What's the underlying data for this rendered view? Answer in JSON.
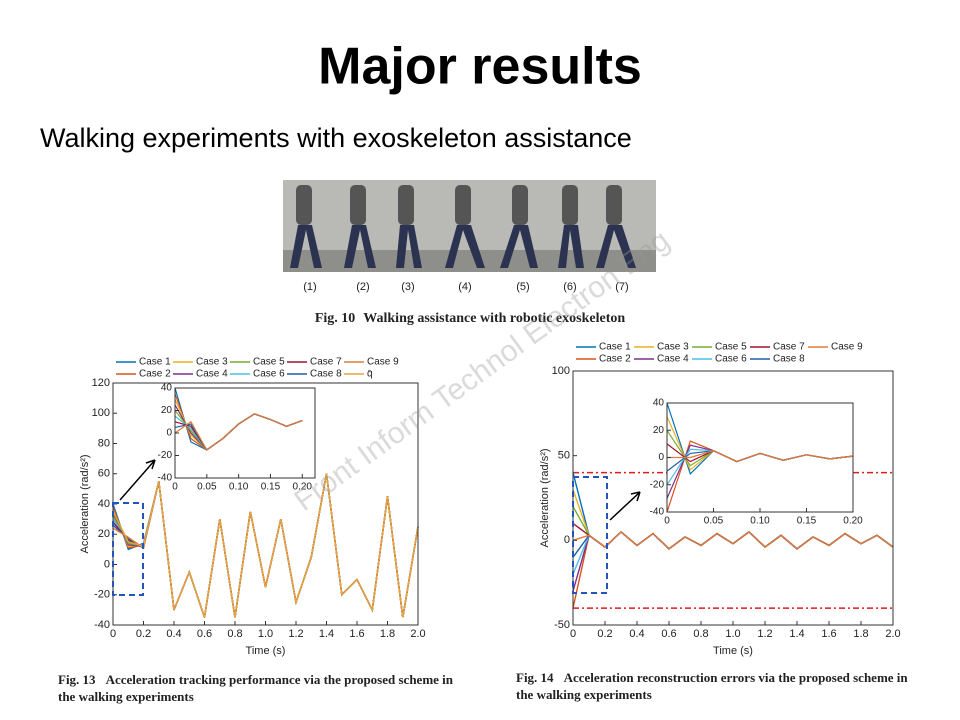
{
  "slide": {
    "title": "Major results",
    "subtitle": "Walking experiments with exoskeleton assistance"
  },
  "photo": {
    "labels": [
      "(1)",
      "(2)",
      "(3)",
      "(4)",
      "(5)",
      "(6)",
      "(7)"
    ],
    "caption_label": "Fig. 10",
    "caption": "Walking assistance with robotic exoskeleton"
  },
  "watermark": "Front Inform Technol Electron Eng",
  "figures": [
    {
      "caption_label": "Fig. 13",
      "caption": "Acceleration tracking performance via the proposed scheme in the walking experiments"
    },
    {
      "caption_label": "Fig. 14",
      "caption": "Acceleration reconstruction errors via the proposed scheme in the walking experiments"
    }
  ],
  "chart_data": [
    {
      "type": "line",
      "xlabel": "Time (s)",
      "ylabel": "Acceleration (rad/s²)",
      "xlim": [
        0,
        2
      ],
      "ylim": [
        -40,
        120
      ],
      "xticks": [
        0,
        0.2,
        0.4,
        0.6,
        0.8,
        {
          "value": 1,
          "label": "1.0"
        },
        1.2,
        1.4,
        1.6,
        1.8,
        {
          "value": 2,
          "label": "2.0"
        }
      ],
      "yticks": [
        -40,
        -20,
        0,
        20,
        40,
        60,
        80,
        100,
        120
      ],
      "x": [
        0,
        0.1,
        0.2,
        0.3,
        0.4,
        0.5,
        0.6,
        0.7,
        0.8,
        0.9,
        1,
        1.1,
        1.2,
        1.3,
        1.4,
        1.5,
        1.6,
        1.7,
        1.8,
        1.9,
        2
      ],
      "series": [
        {
          "name": "Case 1",
          "color": "#0072bd",
          "values": [
            40,
            10,
            14,
            55,
            -30,
            -5,
            -35,
            30,
            -35,
            35,
            -15,
            30,
            -25,
            5,
            60,
            -20,
            -10,
            -30,
            45,
            -35,
            25
          ]
        },
        {
          "name": "Case 2",
          "color": "#d95319",
          "values": [
            38,
            11,
            13,
            55,
            -30,
            -5,
            -35,
            30,
            -35,
            35,
            -15,
            30,
            -25,
            5,
            60,
            -20,
            -10,
            -30,
            45,
            -35,
            25
          ]
        },
        {
          "name": "Case 3",
          "color": "#edb120",
          "values": [
            36,
            12,
            13,
            55,
            -30,
            -5,
            -35,
            30,
            -35,
            35,
            -15,
            30,
            -25,
            5,
            60,
            -20,
            -10,
            -30,
            45,
            -35,
            25
          ]
        },
        {
          "name": "Case 4",
          "color": "#7e2f8e",
          "values": [
            34,
            13,
            12,
            55,
            -30,
            -5,
            -35,
            30,
            -35,
            35,
            -15,
            30,
            -25,
            5,
            60,
            -20,
            -10,
            -30,
            45,
            -35,
            25
          ]
        },
        {
          "name": "Case 5",
          "color": "#77ac30",
          "values": [
            32,
            14,
            12,
            55,
            -30,
            -5,
            -35,
            30,
            -35,
            35,
            -15,
            30,
            -25,
            5,
            60,
            -20,
            -10,
            -30,
            45,
            -35,
            25
          ]
        },
        {
          "name": "Case 6",
          "color": "#4dbeee",
          "values": [
            30,
            15,
            12,
            55,
            -30,
            -5,
            -35,
            30,
            -35,
            35,
            -15,
            30,
            -25,
            5,
            60,
            -20,
            -10,
            -30,
            45,
            -35,
            25
          ]
        },
        {
          "name": "Case 7",
          "color": "#a2142f",
          "values": [
            28,
            16,
            11,
            55,
            -30,
            -5,
            -35,
            30,
            -35,
            35,
            -15,
            30,
            -25,
            5,
            60,
            -20,
            -10,
            -30,
            45,
            -35,
            25
          ]
        },
        {
          "name": "Case 8",
          "color": "#1f5fa8",
          "values": [
            26,
            17,
            11,
            55,
            -30,
            -5,
            -35,
            30,
            -35,
            35,
            -15,
            30,
            -25,
            5,
            60,
            -20,
            -10,
            -30,
            45,
            -35,
            25
          ]
        },
        {
          "name": "Case 9",
          "color": "#e07b39",
          "values": [
            24,
            18,
            11,
            55,
            -30,
            -5,
            -35,
            30,
            -35,
            35,
            -15,
            30,
            -25,
            5,
            60,
            -20,
            -10,
            -30,
            45,
            -35,
            25
          ]
        },
        {
          "name": "q̄",
          "color": "#e8a33a",
          "values": [
            35,
            15,
            12,
            55,
            -30,
            -5,
            -35,
            30,
            -35,
            35,
            -15,
            30,
            -25,
            5,
            60,
            -20,
            -10,
            -30,
            45,
            -35,
            25
          ]
        }
      ]
    },
    {
      "type": "line",
      "xlim": [
        0,
        0.22
      ],
      "ylim": [
        -40,
        40
      ],
      "xticks": [
        0,
        0.05,
        {
          "value": 0.1,
          "label": "0.10"
        },
        0.15,
        {
          "value": 0.2,
          "label": "0.20"
        }
      ],
      "yticks": [
        -40,
        -20,
        0,
        20,
        40
      ],
      "x": [
        0,
        0.025,
        0.05,
        0.075,
        0.1,
        0.125,
        0.15,
        0.175,
        0.2
      ],
      "series": [
        {
          "color": "#0072bd",
          "values": [
            40,
            -8,
            -15,
            -5,
            8,
            17,
            12,
            6,
            11
          ]
        },
        {
          "color": "#d95319",
          "values": [
            35,
            -5,
            -15,
            -5,
            8,
            17,
            12,
            6,
            11
          ]
        },
        {
          "color": "#edb120",
          "values": [
            30,
            -2,
            -15,
            -5,
            8,
            17,
            12,
            6,
            11
          ]
        },
        {
          "color": "#7e2f8e",
          "values": [
            25,
            0,
            -15,
            -5,
            8,
            17,
            12,
            6,
            11
          ]
        },
        {
          "color": "#77ac30",
          "values": [
            20,
            2,
            -15,
            -5,
            8,
            17,
            12,
            6,
            11
          ]
        },
        {
          "color": "#4dbeee",
          "values": [
            15,
            4,
            -15,
            -5,
            8,
            17,
            12,
            6,
            11
          ]
        },
        {
          "color": "#a2142f",
          "values": [
            10,
            6,
            -15,
            -5,
            8,
            17,
            12,
            6,
            11
          ]
        },
        {
          "color": "#1f5fa8",
          "values": [
            5,
            8,
            -15,
            -5,
            8,
            17,
            12,
            6,
            11
          ]
        },
        {
          "color": "#e07b39",
          "values": [
            0,
            10,
            -15,
            -5,
            8,
            17,
            12,
            6,
            11
          ]
        }
      ]
    },
    {
      "type": "line",
      "xlabel": "Time (s)",
      "ylabel": "Acceleration (rad/s²)",
      "xlim": [
        0,
        2
      ],
      "ylim": [
        -50,
        100
      ],
      "xticks": [
        0,
        0.2,
        0.4,
        0.6,
        0.8,
        {
          "value": 1,
          "label": "1.0"
        },
        1.2,
        1.4,
        1.6,
        1.8,
        {
          "value": 2,
          "label": "2.0"
        }
      ],
      "yticks": [
        -50,
        0,
        50,
        100
      ],
      "reference_lines": [
        40,
        -40
      ],
      "reference_color": "#e41a1c",
      "x": [
        0,
        0.1,
        0.2,
        0.3,
        0.4,
        0.5,
        0.6,
        0.7,
        0.8,
        0.9,
        1,
        1.1,
        1.2,
        1.3,
        1.4,
        1.5,
        1.6,
        1.7,
        1.8,
        1.9,
        2
      ],
      "series": [
        {
          "name": "Case 1",
          "color": "#0072bd",
          "values": [
            40,
            3,
            -4,
            5,
            -3,
            4,
            -5,
            2,
            -3,
            4,
            -2,
            5,
            -4,
            3,
            -5,
            2,
            -3,
            4,
            -2,
            3,
            -4
          ]
        },
        {
          "name": "Case 2",
          "color": "#d95319",
          "values": [
            -40,
            3,
            -4,
            5,
            -3,
            4,
            -5,
            2,
            -3,
            4,
            -2,
            5,
            -4,
            3,
            -5,
            2,
            -3,
            4,
            -2,
            3,
            -4
          ]
        },
        {
          "name": "Case 3",
          "color": "#edb120",
          "values": [
            30,
            3,
            -4,
            5,
            -3,
            4,
            -5,
            2,
            -3,
            4,
            -2,
            5,
            -4,
            3,
            -5,
            2,
            -3,
            4,
            -2,
            3,
            -4
          ]
        },
        {
          "name": "Case 4",
          "color": "#7e2f8e",
          "values": [
            -30,
            3,
            -4,
            5,
            -3,
            4,
            -5,
            2,
            -3,
            4,
            -2,
            5,
            -4,
            3,
            -5,
            2,
            -3,
            4,
            -2,
            3,
            -4
          ]
        },
        {
          "name": "Case 5",
          "color": "#77ac30",
          "values": [
            20,
            3,
            -4,
            5,
            -3,
            4,
            -5,
            2,
            -3,
            4,
            -2,
            5,
            -4,
            3,
            -5,
            2,
            -3,
            4,
            -2,
            3,
            -4
          ]
        },
        {
          "name": "Case 6",
          "color": "#4dbeee",
          "values": [
            -20,
            3,
            -4,
            5,
            -3,
            4,
            -5,
            2,
            -3,
            4,
            -2,
            5,
            -4,
            3,
            -5,
            2,
            -3,
            4,
            -2,
            3,
            -4
          ]
        },
        {
          "name": "Case 7",
          "color": "#a2142f",
          "values": [
            10,
            3,
            -4,
            5,
            -3,
            4,
            -5,
            2,
            -3,
            4,
            -2,
            5,
            -4,
            3,
            -5,
            2,
            -3,
            4,
            -2,
            3,
            -4
          ]
        },
        {
          "name": "Case 8",
          "color": "#1f5fa8",
          "values": [
            -10,
            3,
            -4,
            5,
            -3,
            4,
            -5,
            2,
            -3,
            4,
            -2,
            5,
            -4,
            3,
            -5,
            2,
            -3,
            4,
            -2,
            3,
            -4
          ]
        },
        {
          "name": "Case 9",
          "color": "#e07b39",
          "values": [
            0,
            3,
            -4,
            5,
            -3,
            4,
            -5,
            2,
            -3,
            4,
            -2,
            5,
            -4,
            3,
            -5,
            2,
            -3,
            4,
            -2,
            3,
            -4
          ]
        }
      ]
    },
    {
      "type": "line",
      "xlim": [
        0,
        0.2
      ],
      "ylim": [
        -40,
        40
      ],
      "xticks": [
        0,
        0.05,
        {
          "value": 0.1,
          "label": "0.10"
        },
        0.15,
        {
          "value": 0.2,
          "label": "0.20"
        }
      ],
      "yticks": [
        -40,
        -20,
        0,
        20,
        40
      ],
      "x": [
        0,
        0.025,
        0.05,
        0.075,
        0.1,
        0.125,
        0.15,
        0.175,
        0.2
      ],
      "series": [
        {
          "color": "#0072bd",
          "values": [
            40,
            -12,
            5,
            -3,
            3,
            -2,
            2,
            -1,
            1
          ]
        },
        {
          "color": "#d95319",
          "values": [
            -40,
            12,
            5,
            -3,
            3,
            -2,
            2,
            -1,
            1
          ]
        },
        {
          "color": "#edb120",
          "values": [
            30,
            -9,
            5,
            -3,
            3,
            -2,
            2,
            -1,
            1
          ]
        },
        {
          "color": "#7e2f8e",
          "values": [
            -30,
            9,
            5,
            -3,
            3,
            -2,
            2,
            -1,
            1
          ]
        },
        {
          "color": "#77ac30",
          "values": [
            20,
            -6,
            5,
            -3,
            3,
            -2,
            2,
            -1,
            1
          ]
        },
        {
          "color": "#4dbeee",
          "values": [
            -20,
            6,
            5,
            -3,
            3,
            -2,
            2,
            -1,
            1
          ]
        },
        {
          "color": "#a2142f",
          "values": [
            10,
            -3,
            5,
            -3,
            3,
            -2,
            2,
            -1,
            1
          ]
        },
        {
          "color": "#1f5fa8",
          "values": [
            -10,
            3,
            5,
            -3,
            3,
            -2,
            2,
            -1,
            1
          ]
        },
        {
          "color": "#e07b39",
          "values": [
            0,
            0,
            5,
            -3,
            3,
            -2,
            2,
            -1,
            1
          ]
        }
      ]
    }
  ]
}
